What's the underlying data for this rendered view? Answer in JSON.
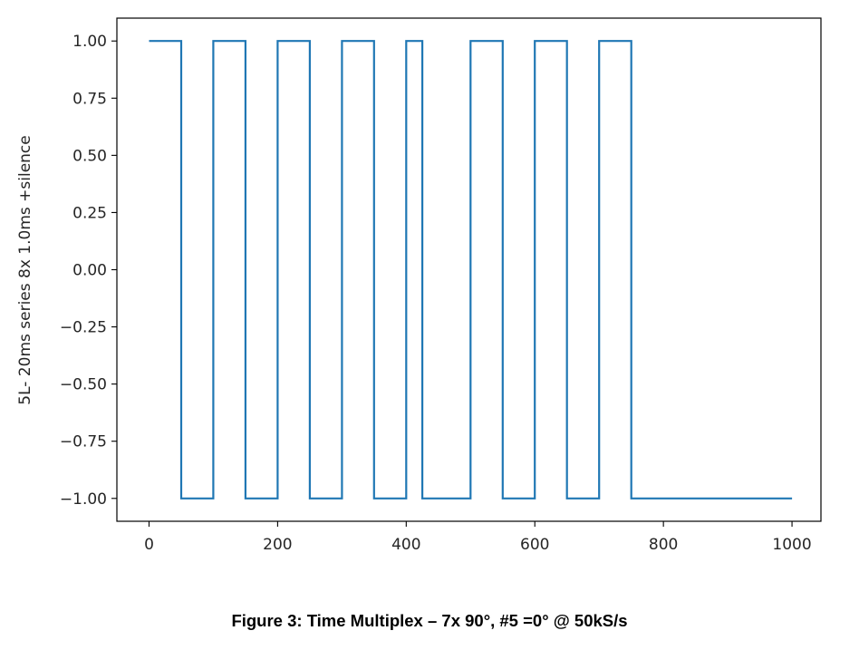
{
  "chart_data": {
    "type": "line",
    "title": "",
    "xlabel": "",
    "ylabel": "5L- 20ms series 8x 1.0ms +silence",
    "xlim": [
      -50,
      1045
    ],
    "ylim": [
      -1.1,
      1.1
    ],
    "xticks": [
      0,
      200,
      400,
      600,
      800,
      1000
    ],
    "xtick_labels": [
      "0",
      "200",
      "400",
      "600",
      "800",
      "1000"
    ],
    "yticks": [
      1.0,
      0.75,
      0.5,
      0.25,
      0.0,
      -0.25,
      -0.5,
      -0.75,
      -1.0
    ],
    "ytick_labels": [
      "1.00",
      "0.75",
      "0.50",
      "0.25",
      "0.00",
      "−0.25",
      "−0.50",
      "−0.75",
      "−1.00"
    ],
    "grid": false,
    "series": [
      {
        "color": "#1f77b4",
        "x": [
          0,
          50,
          50,
          100,
          100,
          150,
          150,
          200,
          200,
          250,
          250,
          300,
          300,
          350,
          350,
          400,
          400,
          425,
          425,
          500,
          500,
          550,
          550,
          600,
          600,
          650,
          650,
          700,
          700,
          750,
          750,
          1000
        ],
        "y": [
          1,
          1,
          -1,
          -1,
          1,
          1,
          -1,
          -1,
          1,
          1,
          -1,
          -1,
          1,
          1,
          -1,
          -1,
          1,
          1,
          -1,
          -1,
          1,
          1,
          -1,
          -1,
          1,
          1,
          -1,
          -1,
          1,
          1,
          -1,
          -1
        ]
      }
    ]
  },
  "caption": "Figure 3: Time Multiplex – 7x 90°, #5 =0° @ 50kS/s"
}
